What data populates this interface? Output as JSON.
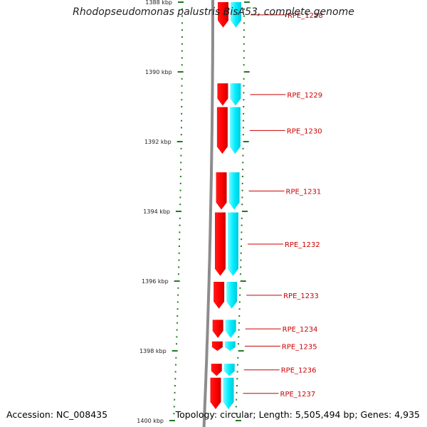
{
  "title": "Rhodopseudomonas palustris BisA53, complete genome",
  "footer": {
    "accession": "Accession: NC_008435",
    "summary": "Topology: circular; Length: 5,505,494 bp; Genes: 4,935"
  },
  "scale": {
    "unit": "kbp",
    "start_kbp": 1388,
    "end_kbp": 1400,
    "major_ticks_kbp": [
      1388,
      1390,
      1392,
      1394,
      1396,
      1398,
      1400
    ],
    "tick_labels": [
      "1388 kbp",
      "1390 kbp",
      "1392 kbp",
      "1394 kbp",
      "1396 kbp",
      "1398 kbp",
      "1400 kbp"
    ]
  },
  "genes": [
    {
      "label": "RPE_1228",
      "start_kbp": 1388.0,
      "end_kbp": 1388.73
    },
    {
      "label": "RPE_1229",
      "start_kbp": 1390.33,
      "end_kbp": 1390.97
    },
    {
      "label": "RPE_1230",
      "start_kbp": 1391.01,
      "end_kbp": 1392.35
    },
    {
      "label": "RPE_1231",
      "start_kbp": 1392.88,
      "end_kbp": 1393.95
    },
    {
      "label": "RPE_1232",
      "start_kbp": 1394.03,
      "end_kbp": 1395.85
    },
    {
      "label": "RPE_1233",
      "start_kbp": 1396.02,
      "end_kbp": 1396.79
    },
    {
      "label": "RPE_1234",
      "start_kbp": 1397.11,
      "end_kbp": 1397.63
    },
    {
      "label": "RPE_1235",
      "start_kbp": 1397.73,
      "end_kbp": 1398.0
    },
    {
      "label": "RPE_1236",
      "start_kbp": 1398.37,
      "end_kbp": 1398.72
    },
    {
      "label": "RPE_1237",
      "start_kbp": 1398.77,
      "end_kbp": 1399.67
    }
  ],
  "colors": {
    "backbone": "#8c8c8c",
    "cds_strand": "#ff0000",
    "orf_strand": "#00eeff",
    "tick": "#1f7a1f",
    "label_line": "#cc0000",
    "label_text": "#cc0000"
  }
}
